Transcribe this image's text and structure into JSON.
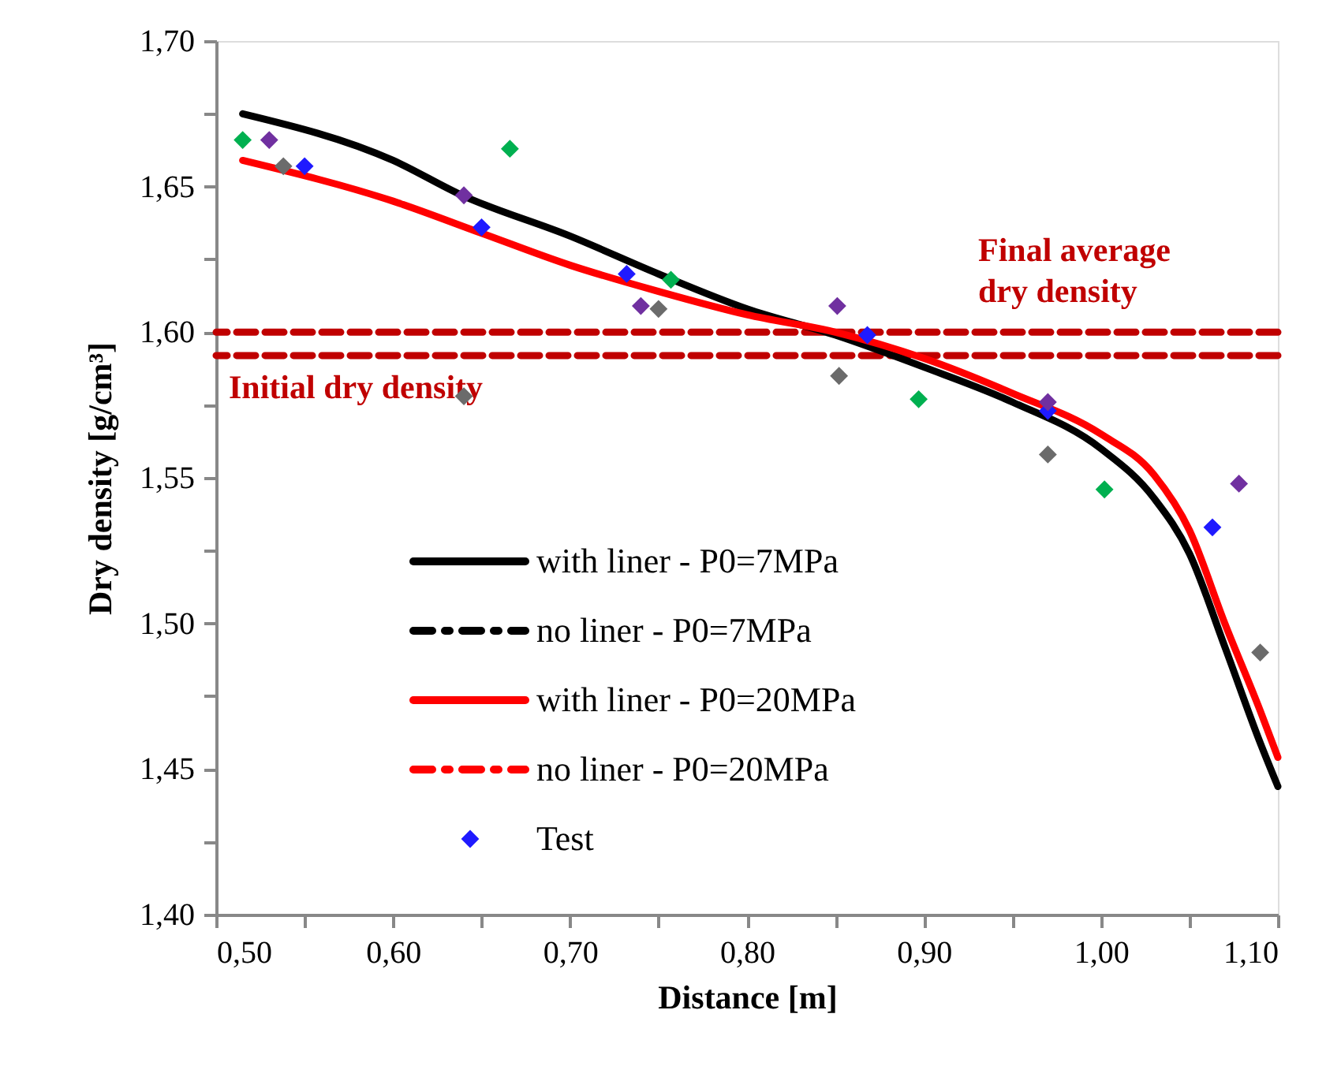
{
  "chart_data": {
    "type": "line",
    "xlabel": "Distance [m]",
    "ylabel": "Dry density [g/cm³]",
    "xlim": [
      0.5,
      1.1
    ],
    "ylim": [
      1.4,
      1.7
    ],
    "xticks": [
      {
        "value": 0.5,
        "label": "0,50"
      },
      {
        "value": 0.55,
        "label": null
      },
      {
        "value": 0.6,
        "label": "0,60"
      },
      {
        "value": 0.65,
        "label": null
      },
      {
        "value": 0.7,
        "label": "0,70"
      },
      {
        "value": 0.75,
        "label": null
      },
      {
        "value": 0.8,
        "label": "0,80"
      },
      {
        "value": 0.85,
        "label": null
      },
      {
        "value": 0.9,
        "label": "0,90"
      },
      {
        "value": 0.95,
        "label": null
      },
      {
        "value": 1.0,
        "label": "1,00"
      },
      {
        "value": 1.05,
        "label": null
      },
      {
        "value": 1.1,
        "label": "1,10"
      }
    ],
    "yticks": [
      {
        "value": 1.4,
        "label": "1,40"
      },
      {
        "value": 1.425,
        "label": null
      },
      {
        "value": 1.45,
        "label": "1,45"
      },
      {
        "value": 1.475,
        "label": null
      },
      {
        "value": 1.5,
        "label": "1,50"
      },
      {
        "value": 1.525,
        "label": null
      },
      {
        "value": 1.55,
        "label": "1,55"
      },
      {
        "value": 1.575,
        "label": null
      },
      {
        "value": 1.6,
        "label": "1,60"
      },
      {
        "value": 1.625,
        "label": null
      },
      {
        "value": 1.65,
        "label": "1,65"
      },
      {
        "value": 1.675,
        "label": null
      },
      {
        "value": 1.7,
        "label": "1,70"
      }
    ],
    "grid": false,
    "legend": "bottom left",
    "ref_lines": [
      {
        "axis": "y",
        "value": 1.6,
        "label": "Final average dry density",
        "color": "#c00000",
        "line_style": "dashed"
      },
      {
        "axis": "y",
        "value": 1.592,
        "label": "Initial dry density",
        "color": "#c00000",
        "line_style": "dashed"
      }
    ],
    "series": [
      {
        "name": "with liner - P0=7MPa",
        "color": "#000000",
        "line_style": "solid",
        "x": [
          0.515,
          0.6,
          0.639,
          0.7,
          0.75,
          0.8,
          0.85,
          0.9,
          0.95,
          1.0,
          1.03,
          1.05,
          1.07,
          1.09,
          1.1
        ],
        "values": [
          1.675,
          1.659,
          1.647,
          1.633,
          1.62,
          1.608,
          1.599,
          1.588,
          1.576,
          1.56,
          1.543,
          1.524,
          1.492,
          1.459,
          1.444
        ]
      },
      {
        "name": "no liner - P0=7MPa",
        "color": "#000000",
        "line_style": "dashed",
        "values": [
          null,
          null
        ]
      },
      {
        "name": "with liner - P0=20MPa",
        "color": "#ff0000",
        "line_style": "solid",
        "x": [
          0.515,
          0.6,
          0.65,
          0.7,
          0.75,
          0.8,
          0.85,
          0.9,
          0.95,
          1.0,
          1.03,
          1.05,
          1.07,
          1.09,
          1.1
        ],
        "values": [
          1.659,
          1.645,
          1.634,
          1.623,
          1.614,
          1.606,
          1.6,
          1.591,
          1.579,
          1.565,
          1.551,
          1.532,
          1.5,
          1.47,
          1.454
        ]
      },
      {
        "name": "no liner - P0=20MPa",
        "color": "#ff0000",
        "line_style": "dashed",
        "values": [
          null,
          null
        ]
      },
      {
        "name": "Test",
        "type": "scatter",
        "marker": "diamond",
        "color": "#1f1aff",
        "x": [
          0.55,
          0.65,
          0.732,
          0.868,
          0.97,
          1.063
        ],
        "values": [
          1.657,
          1.636,
          1.62,
          1.599,
          1.573,
          1.533
        ]
      },
      {
        "type": "scatter",
        "marker": "diamond",
        "color": "#00b050",
        "x": [
          0.515,
          0.666,
          0.757,
          0.897,
          1.002
        ],
        "values": [
          1.666,
          1.663,
          1.618,
          1.577,
          1.546
        ]
      },
      {
        "type": "scatter",
        "marker": "diamond",
        "color": "#7030a0",
        "x": [
          0.53,
          0.64,
          0.74,
          0.851,
          0.97,
          1.078
        ],
        "values": [
          1.666,
          1.647,
          1.609,
          1.609,
          1.576,
          1.548
        ]
      },
      {
        "type": "scatter",
        "marker": "diamond",
        "color": "#6b6b6b",
        "x": [
          0.538,
          0.64,
          0.75,
          0.852,
          0.97,
          1.09
        ],
        "values": [
          1.657,
          1.578,
          1.608,
          1.585,
          1.558,
          1.49
        ]
      }
    ]
  }
}
